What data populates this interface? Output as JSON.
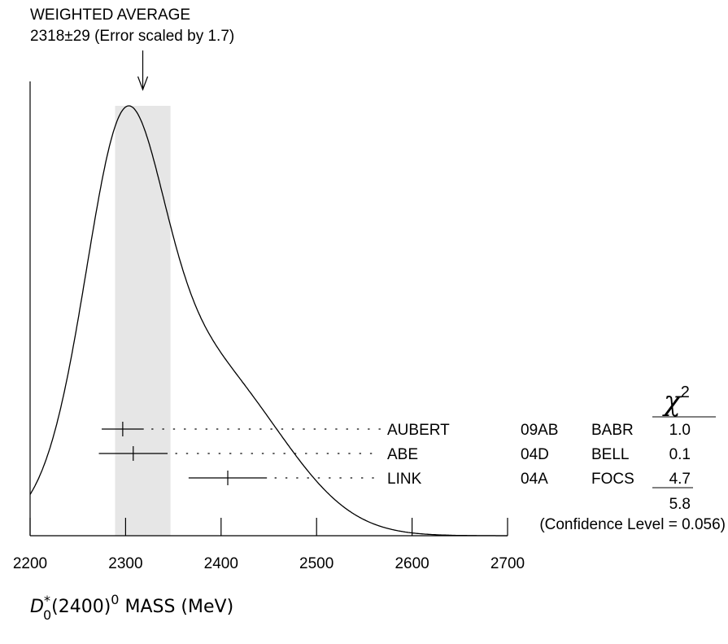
{
  "header": {
    "line1": "WEIGHTED AVERAGE",
    "line2": "2318±29 (Error scaled by 1.7)"
  },
  "chi2_header": {
    "symbol": "χ",
    "superscript": "2"
  },
  "chart_data": {
    "type": "ideogram",
    "xlabel": {
      "main": "D",
      "sup_star": "*",
      "sub": "0",
      "middle": "(2400)",
      "sup": "0",
      "tail": " MASS (MeV)"
    },
    "xlim": [
      2200,
      2700
    ],
    "x_ticks": [
      2200,
      2300,
      2400,
      2500,
      2600,
      2700
    ],
    "x_tick_labels": [
      "2200",
      "2300",
      "2400",
      "2500",
      "2600",
      "2700"
    ],
    "weighted_average": {
      "value": 2318,
      "error": 29,
      "scale_factor": 1.7
    },
    "measurements": [
      {
        "author": "AUBERT",
        "ref": "09AB",
        "exp": "BABR",
        "value": 2297,
        "err_low": 22,
        "err_high": 22,
        "chi2": "1.0"
      },
      {
        "author": "ABE",
        "ref": "04D",
        "exp": "BELL",
        "value": 2308,
        "err_low": 36,
        "err_high": 36,
        "chi2": "0.1"
      },
      {
        "author": "LINK",
        "ref": "04A",
        "exp": "FOCS",
        "value": 2407,
        "err_low": 41,
        "err_high": 41,
        "chi2": "4.7"
      }
    ],
    "chi2_total": "5.8",
    "confidence_level": "(Confidence Level = 0.056)"
  }
}
